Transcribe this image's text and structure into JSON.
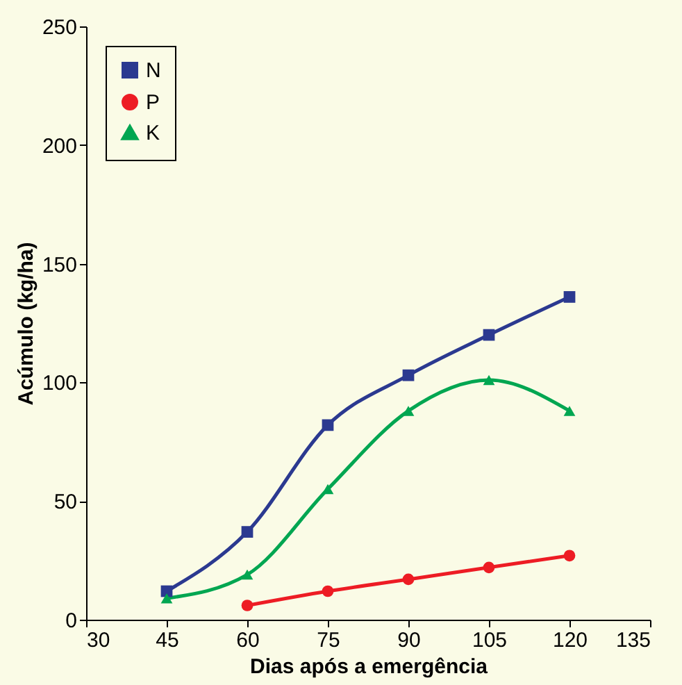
{
  "chart_data": {
    "type": "line",
    "xlabel": "Dias após a emergência",
    "ylabel": "Acúmulo (kg/ha)",
    "xlim": [
      30,
      135
    ],
    "xticks": [
      30,
      45,
      60,
      75,
      90,
      105,
      120,
      135
    ],
    "ylim": [
      0,
      250
    ],
    "yticks": [
      0,
      50,
      100,
      150,
      200,
      250
    ],
    "grid": false,
    "legend": "top left",
    "line_style": "solid",
    "series": [
      {
        "name": "N",
        "color": "#2b3990",
        "marker": "square",
        "x": [
          45,
          60,
          75,
          90,
          105,
          120
        ],
        "values": [
          12,
          37,
          82,
          103,
          120,
          136
        ]
      },
      {
        "name": "P",
        "color": "#ed1c24",
        "marker": "circle",
        "x": [
          60,
          75,
          90,
          105,
          120
        ],
        "values": [
          6,
          12,
          17,
          22,
          27
        ]
      },
      {
        "name": "K",
        "color": "#00a651",
        "marker": "triangle",
        "x": [
          45,
          60,
          75,
          90,
          105,
          120
        ],
        "values": [
          9,
          19,
          55,
          88,
          101,
          88
        ]
      }
    ]
  }
}
